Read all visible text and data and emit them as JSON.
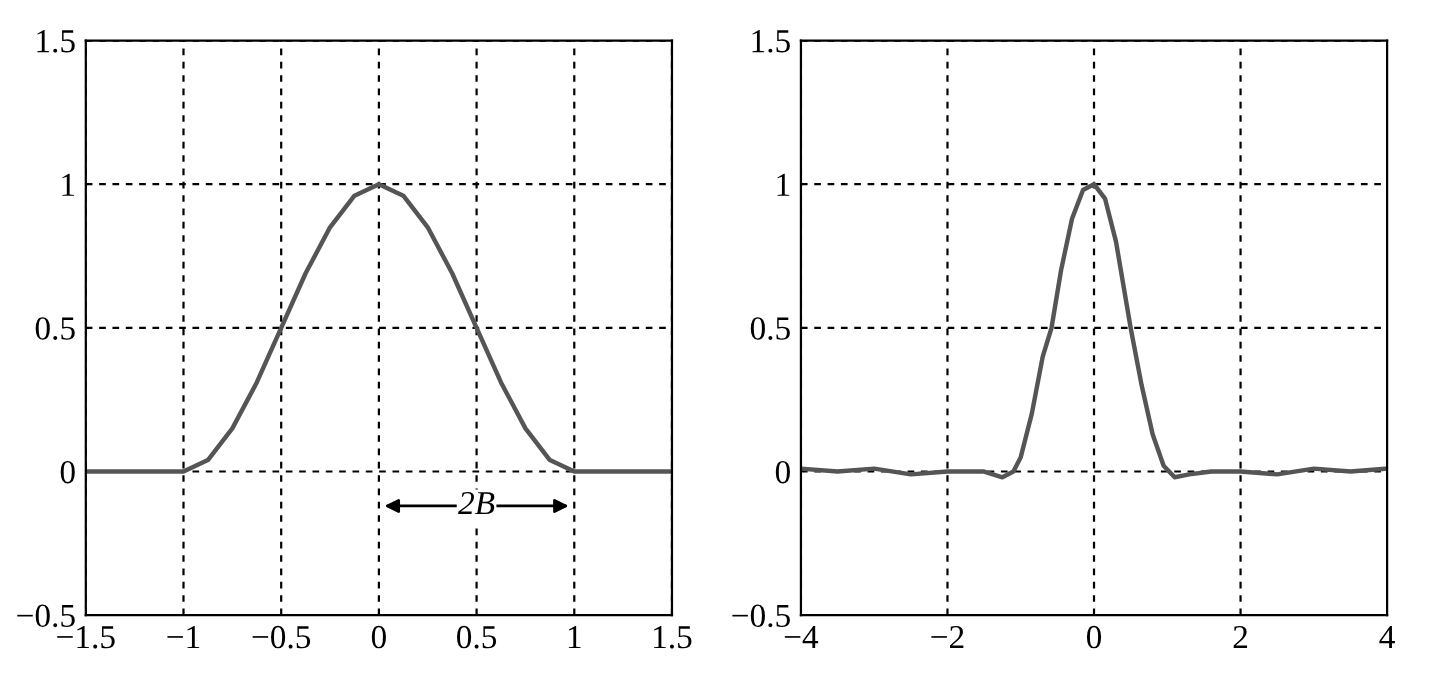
{
  "chart_data": [
    {
      "type": "line",
      "x": [
        -1.5,
        -1,
        -0.875,
        -0.75,
        -0.625,
        -0.5,
        -0.375,
        -0.25,
        -0.125,
        0,
        0.125,
        0.25,
        0.375,
        0.5,
        0.625,
        0.75,
        0.875,
        1,
        1.5
      ],
      "series": [
        {
          "color": "#555555",
          "values": [
            0,
            0,
            0.04,
            0.15,
            0.31,
            0.5,
            0.69,
            0.85,
            0.96,
            1,
            0.96,
            0.85,
            0.69,
            0.5,
            0.31,
            0.15,
            0.04,
            0,
            0
          ]
        }
      ],
      "xlim": [
        -1.5,
        1.5
      ],
      "ylim": [
        -0.5,
        1.5
      ],
      "xticks": [
        -1.5,
        -1,
        -0.5,
        0,
        0.5,
        1,
        1.5
      ],
      "yticks": [
        -0.5,
        0,
        0.5,
        1,
        1.5
      ],
      "grid": true,
      "line_style": "solid",
      "marker": "none",
      "annotations": [
        {
          "text": "2B",
          "x": 0.5,
          "y": -0.12
        }
      ]
    },
    {
      "type": "line",
      "x": [
        -4,
        -3.5,
        -3,
        -2.5,
        -2,
        -1.5,
        -1.25,
        -1.1,
        -1,
        -0.85,
        -0.7,
        -0.58,
        -0.45,
        -0.3,
        -0.15,
        0,
        0.15,
        0.3,
        0.5,
        0.65,
        0.8,
        0.95,
        1.1,
        1.3,
        1.6,
        2,
        2.5,
        3,
        3.5,
        4
      ],
      "series": [
        {
          "color": "#555555",
          "values": [
            0.01,
            0.0,
            0.01,
            -0.01,
            0,
            0.0,
            -0.02,
            0.0,
            0.05,
            0.2,
            0.4,
            0.5,
            0.7,
            0.88,
            0.98,
            1,
            0.95,
            0.8,
            0.5,
            0.3,
            0.13,
            0.02,
            -0.02,
            -0.01,
            0.0,
            0,
            -0.01,
            0.01,
            0.0,
            0.01
          ]
        }
      ],
      "xlim": [
        -4,
        4
      ],
      "ylim": [
        -0.5,
        1.5
      ],
      "xticks": [
        -4,
        -2,
        0,
        2,
        4
      ],
      "yticks": [
        -0.5,
        0,
        0.5,
        1,
        1.5
      ],
      "grid": true,
      "line_style": "solid",
      "marker": "none"
    }
  ]
}
